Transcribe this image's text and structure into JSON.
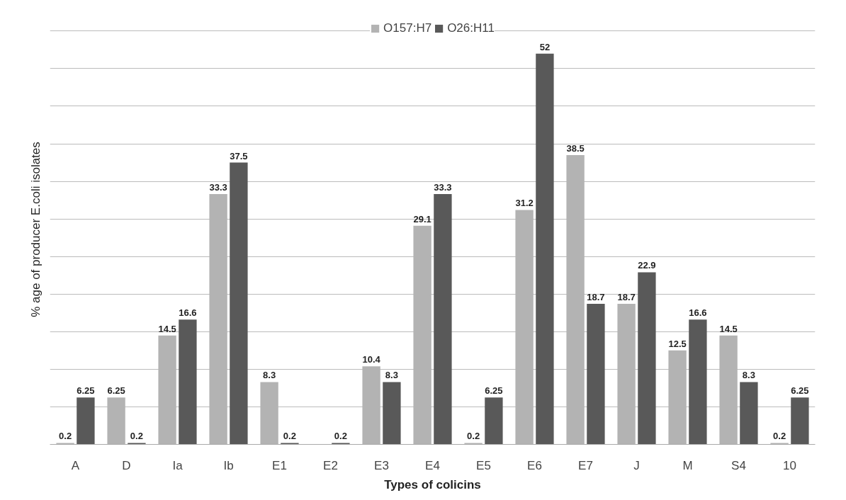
{
  "chart_data": {
    "type": "bar",
    "xlabel": "Types of colicins",
    "ylabel": "% age of producer E.coli isolates",
    "categories": [
      "A",
      "D",
      "Ia",
      "Ib",
      "E1",
      "E2",
      "E3",
      "E4",
      "E5",
      "E6",
      "E7",
      "J",
      "M",
      "S4",
      "10"
    ],
    "series": [
      {
        "name": "O157:H7",
        "color": "#b3b3b3",
        "values": [
          0.2,
          6.25,
          14.5,
          33.3,
          8.3,
          null,
          10.4,
          29.1,
          0.2,
          31.2,
          38.5,
          18.7,
          12.5,
          14.5,
          0.2
        ]
      },
      {
        "name": "O26:H11",
        "color": "#595959",
        "values": [
          6.25,
          0.2,
          16.6,
          37.5,
          0.2,
          0.2,
          8.3,
          33.3,
          6.25,
          52,
          18.7,
          22.9,
          16.6,
          8.3,
          6.25
        ]
      }
    ],
    "tick_labels": "x",
    "grid": "y",
    "legend": "top",
    "data_labels": true
  }
}
